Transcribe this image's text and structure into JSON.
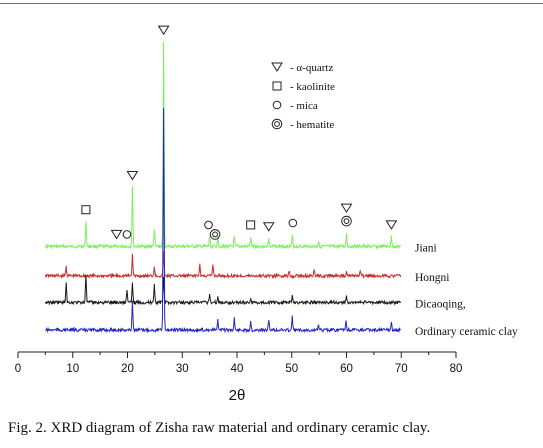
{
  "caption": "Fig. 2. XRD diagram of Zisha raw material and ordinary ceramic clay.",
  "chart_data": {
    "type": "line",
    "xlabel": "2θ",
    "ylabel": "",
    "xlim": [
      0,
      80
    ],
    "xticks": [
      0,
      10,
      20,
      30,
      40,
      50,
      60,
      70,
      80
    ],
    "xtick_labels": [
      "0",
      "10",
      "20",
      "30",
      "40",
      "50",
      "60",
      "70",
      "80"
    ],
    "grid": false,
    "y_axis_shown": false,
    "series": [
      {
        "name": "Jiani",
        "color": "#7cf05a",
        "baseline": 0.88,
        "peaks": [
          [
            12.4,
            0.26
          ],
          [
            20.9,
            0.62
          ],
          [
            24.9,
            0.18
          ],
          [
            26.6,
            2.15
          ],
          [
            35.0,
            0.1
          ],
          [
            36.5,
            0.12
          ],
          [
            39.5,
            0.1
          ],
          [
            42.5,
            0.1
          ],
          [
            45.8,
            0.08
          ],
          [
            50.1,
            0.12
          ],
          [
            54.9,
            0.06
          ],
          [
            60.0,
            0.14
          ],
          [
            68.2,
            0.1
          ]
        ]
      },
      {
        "name": "Hongni",
        "color": "#cc2a2a",
        "baseline": 0.57,
        "peaks": [
          [
            8.8,
            0.1
          ],
          [
            20.9,
            0.22
          ],
          [
            24.9,
            0.1
          ],
          [
            26.6,
            0.26
          ],
          [
            33.2,
            0.12
          ],
          [
            35.6,
            0.12
          ],
          [
            49.5,
            0.06
          ],
          [
            54.1,
            0.06
          ],
          [
            60.0,
            0.06
          ],
          [
            62.5,
            0.05
          ]
        ]
      },
      {
        "name": "Dicaoqing,",
        "color": "#1a1a1a",
        "baseline": 0.29,
        "peaks": [
          [
            8.8,
            0.22
          ],
          [
            12.4,
            0.3
          ],
          [
            19.9,
            0.14
          ],
          [
            20.9,
            0.2
          ],
          [
            24.9,
            0.2
          ],
          [
            26.6,
            0.28
          ],
          [
            35.0,
            0.1
          ],
          [
            36.5,
            0.06
          ],
          [
            42.5,
            0.05
          ],
          [
            50.1,
            0.08
          ],
          [
            60.0,
            0.06
          ]
        ]
      },
      {
        "name": "Ordinary ceramic clay",
        "color": "#2323c8",
        "baseline": 0.0,
        "peaks": [
          [
            20.9,
            0.3
          ],
          [
            26.6,
            2.35
          ],
          [
            36.5,
            0.1
          ],
          [
            39.5,
            0.12
          ],
          [
            42.5,
            0.1
          ],
          [
            45.8,
            0.1
          ],
          [
            50.1,
            0.14
          ],
          [
            54.9,
            0.06
          ],
          [
            59.9,
            0.1
          ],
          [
            68.2,
            0.08
          ]
        ]
      }
    ],
    "legend": {
      "placement": "top-right",
      "entries": [
        {
          "symbol": "triangle-down",
          "label": "α-quartz"
        },
        {
          "symbol": "square",
          "label": "kaolinite"
        },
        {
          "symbol": "circle",
          "label": "mica"
        },
        {
          "symbol": "double-circle",
          "label": "hematite"
        }
      ]
    },
    "annotations": [
      {
        "x": 12.4,
        "symbol": "square",
        "series": "Jiani"
      },
      {
        "x": 18.0,
        "symbol": "triangle-down",
        "series": "Jiani"
      },
      {
        "x": 19.9,
        "symbol": "circle",
        "series": "Jiani"
      },
      {
        "x": 20.9,
        "symbol": "triangle-down",
        "series": "Jiani"
      },
      {
        "x": 26.6,
        "symbol": "triangle-down",
        "series": "Jiani"
      },
      {
        "x": 34.8,
        "symbol": "circle",
        "series": "Jiani"
      },
      {
        "x": 36.0,
        "symbol": "double-circle",
        "series": "Jiani"
      },
      {
        "x": 42.5,
        "symbol": "square",
        "series": "Jiani"
      },
      {
        "x": 45.8,
        "symbol": "triangle-down",
        "series": "Jiani"
      },
      {
        "x": 50.2,
        "symbol": "circle",
        "series": "Jiani"
      },
      {
        "x": 60.0,
        "symbol": "double-circle",
        "series": "Jiani"
      },
      {
        "x": 60.0,
        "symbol": "triangle-down",
        "series": "Jiani"
      },
      {
        "x": 68.2,
        "symbol": "triangle-down",
        "series": "Jiani"
      }
    ]
  }
}
